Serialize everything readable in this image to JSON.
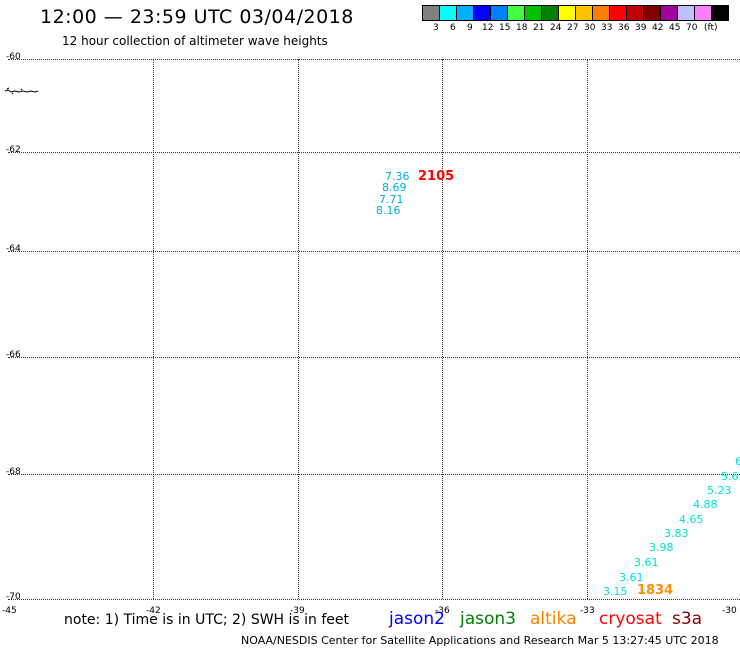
{
  "title": "12:00 — 23:59 UTC 03/04/2018",
  "subtitle": "12 hour collection of altimeter wave heights",
  "color_scale": {
    "colors": [
      "#808080",
      "#00ffff",
      "#00b0ff",
      "#0000ff",
      "#0080ff",
      "#40ff40",
      "#00c000",
      "#008000",
      "#ffff00",
      "#ffc000",
      "#ff8000",
      "#ff0000",
      "#c00000",
      "#800000",
      "#a000a0",
      "#c0c0ff",
      "#ff80ff",
      "#000000"
    ],
    "labels": [
      "3",
      "6",
      "9",
      "12",
      "15",
      "18",
      "21",
      "24",
      "27",
      "30",
      "33",
      "36",
      "39",
      "42",
      "45",
      "70",
      "(ft)"
    ]
  },
  "lat_labels": [
    "-60",
    "-62",
    "-64",
    "-66",
    "-68",
    "-70"
  ],
  "lon_labels": [
    "-45",
    "-42",
    "-39",
    "-36",
    "-33",
    "-30"
  ],
  "observations": [
    {
      "value": "7.36",
      "color": "#00b0e0"
    },
    {
      "value": "8.69",
      "color": "#00b0e0"
    },
    {
      "value": "7.71",
      "color": "#00b0e0"
    },
    {
      "value": "8.16",
      "color": "#00b0e0"
    },
    {
      "value": "6",
      "color": "#00e0e0"
    },
    {
      "value": "5.6",
      "color": "#00e0e0"
    },
    {
      "value": "5.23",
      "color": "#00e0e0"
    },
    {
      "value": "4.88",
      "color": "#00e0e0"
    },
    {
      "value": "4.65",
      "color": "#00e0e0"
    },
    {
      "value": "3.83",
      "color": "#00e0e0"
    },
    {
      "value": "3.98",
      "color": "#00e0e0"
    },
    {
      "value": "3.61",
      "color": "#00e0e0"
    },
    {
      "value": "3.61",
      "color": "#00e0e0"
    },
    {
      "value": "3.15",
      "color": "#00e0e0"
    }
  ],
  "pass_times": [
    {
      "time": "2105",
      "color": "#ff0000"
    },
    {
      "time": "1834",
      "color": "#ff9000"
    }
  ],
  "note": "note: 1) Time is in UTC; 2) SWH is in feet",
  "satellites": [
    {
      "name": "jason2",
      "color": "#0000ff"
    },
    {
      "name": "jason3",
      "color": "#008000"
    },
    {
      "name": "altika",
      "color": "#ff8000"
    },
    {
      "name": "cryosat",
      "color": "#ff0000"
    },
    {
      "name": "s3a",
      "color": "#800000"
    }
  ],
  "footer": "NOAA/NESDIS Center for Satellite Applications and Research   Mar  5 13:27:45 UTC 2018"
}
